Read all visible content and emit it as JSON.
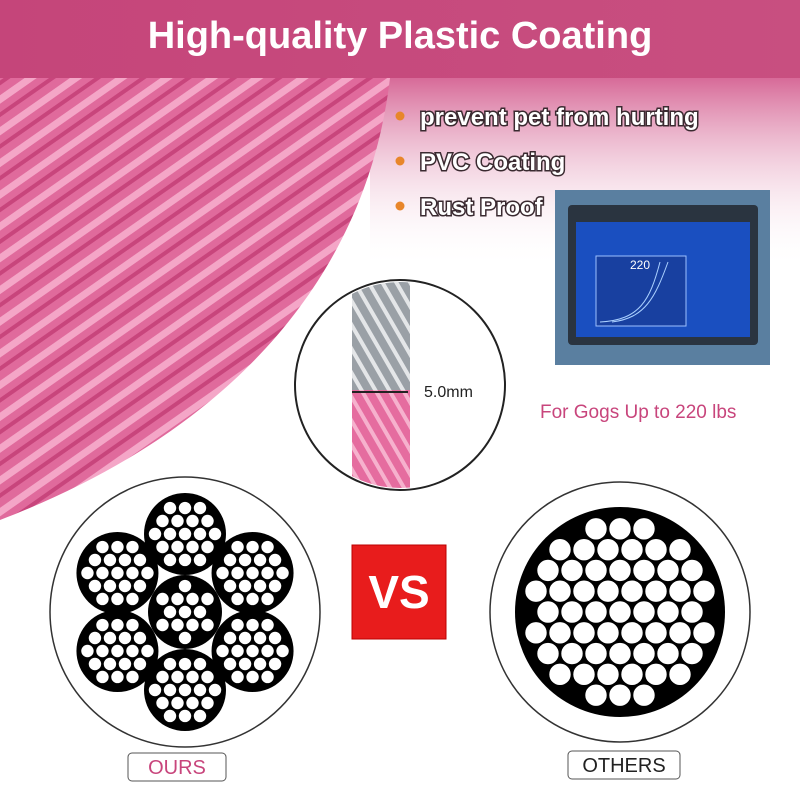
{
  "header": {
    "title": "High-quality Plastic Coating"
  },
  "features": [
    "prevent pet from hurting",
    "PVC Coating",
    "Rust Proof"
  ],
  "zoom": {
    "diameter": "5.0mm"
  },
  "screen": {
    "label": "220"
  },
  "capacity": "For Gogs Up to 220 lbs",
  "comparison": {
    "vs": "VS",
    "left": "OURS",
    "right": "OTHERS"
  }
}
